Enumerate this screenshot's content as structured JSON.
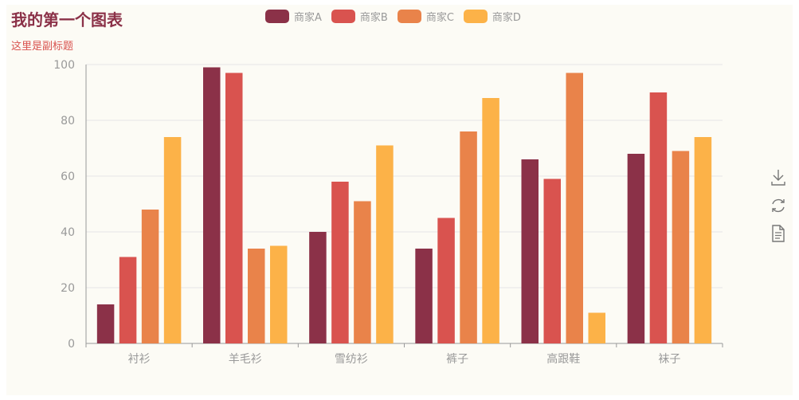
{
  "chart_data": {
    "type": "bar",
    "title": "我的第一个图表",
    "subtitle": "这里是副标题",
    "categories": [
      "衬衫",
      "羊毛衫",
      "雪纺衫",
      "裤子",
      "高跟鞋",
      "袜子"
    ],
    "series": [
      {
        "name": "商家A",
        "color": "#8b3148",
        "values": [
          14,
          99,
          40,
          34,
          66,
          68
        ]
      },
      {
        "name": "商家B",
        "color": "#d9534f",
        "values": [
          31,
          97,
          58,
          45,
          59,
          90
        ]
      },
      {
        "name": "商家C",
        "color": "#e9834a",
        "values": [
          48,
          34,
          51,
          76,
          97,
          69
        ]
      },
      {
        "name": "商家D",
        "color": "#fcb248",
        "values": [
          74,
          35,
          71,
          88,
          11,
          74
        ]
      }
    ],
    "ylim": [
      0,
      100
    ],
    "yticks": [
      0,
      20,
      40,
      60,
      80,
      100
    ],
    "grid": true,
    "legend_position": "top-center"
  },
  "toolbox": {
    "icons": [
      "download-icon",
      "refresh-icon",
      "data-view-icon"
    ],
    "colors": {
      "icon": "#777777"
    }
  }
}
